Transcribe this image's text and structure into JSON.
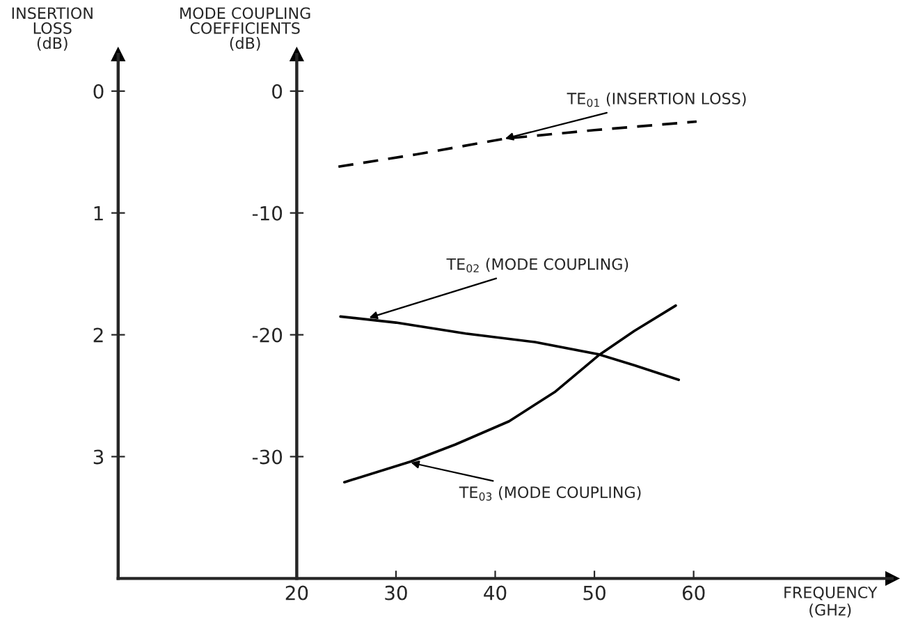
{
  "chart_data": {
    "type": "line",
    "xlabel": "FREQUENCY\n(GHz)",
    "ylabel": "INSERTION\nLOSS\n(dB)",
    "y2label": "MODE COUPLING\nCOEFFICIENTS\n(dB)",
    "xlim": [
      2,
      80
    ],
    "xticks": [
      20,
      30,
      40,
      50,
      60
    ],
    "ylim": [
      4,
      -0.3
    ],
    "yticks": [
      0,
      1,
      2,
      3
    ],
    "y2lim": [
      -40,
      3
    ],
    "y2ticks": [
      0,
      -10,
      -20,
      -30
    ],
    "series": [
      {
        "color": "#000000",
        "line_style": "dashed",
        "x": [
          24.2,
          32,
          41,
          50,
          60.3
        ],
        "values": [
          0.62,
          0.52,
          0.39,
          0.32,
          0.25
        ]
      },
      {
        "color": "#000000",
        "line_style": "solid",
        "axis": "y2",
        "x": [
          24.4,
          30,
          37,
          44,
          50.4,
          54,
          58.5
        ],
        "values": [
          -18.5,
          -19.0,
          -19.9,
          -20.6,
          -21.6,
          -22.5,
          -23.7
        ]
      },
      {
        "color": "#000000",
        "line_style": "solid",
        "axis": "y2",
        "x": [
          24.8,
          31.5,
          36,
          41.4,
          46,
          50.4,
          54,
          58.2
        ],
        "values": [
          -32.1,
          -30.4,
          -29.0,
          -27.1,
          -24.7,
          -21.7,
          -19.7,
          -17.6
        ]
      }
    ],
    "annotations": [
      {
        "text": "TE$_{01}$ (INSERTION LOSS)",
        "x": 41,
        "y": 0.39
      },
      {
        "text": "TE$_{02}$ (MODE COUPLING)",
        "x": 27.3,
        "y": 1.86
      },
      {
        "text": "TE$_{03}$ (MODE COUPLING)",
        "x": 31.5,
        "y": 3.05
      }
    ]
  }
}
